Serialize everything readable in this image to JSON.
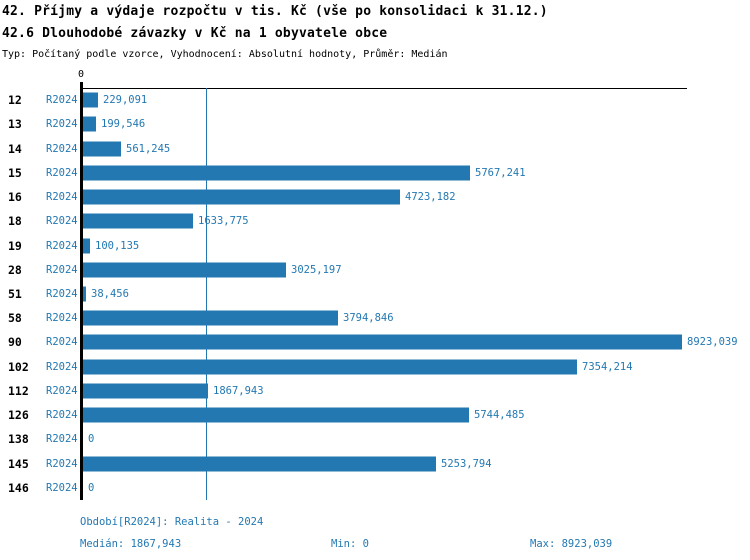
{
  "header": {
    "title_line1": "42. Příjmy a výdaje rozpočtu v tis. Kč (vše po konsolidaci k 31.12.)",
    "title_line2": "42.6 Dlouhodobé závazky v Kč na 1 obyvatele obce",
    "subtitle": "Typ: Počítaný podle vzorce, Vyhodnocení: Absolutní hodnoty, Průměr: Medián"
  },
  "chart_data": {
    "type": "bar",
    "orientation": "horizontal",
    "series_label": "R2024",
    "title": "42.6 Dlouhodobé závazky v Kč na 1 obyvatele obce",
    "xlabel": "",
    "ylabel": "",
    "xlim": [
      0,
      8923.039
    ],
    "grid": "median-line-only",
    "axis": {
      "zero_tick_label": "0",
      "x_max": 8923.039
    },
    "median_value": 1867.943,
    "min_value": 0,
    "max_value": 8923.039,
    "colors": {
      "bar": "#2378b2",
      "median_line": "#2378b2",
      "axis": "#000000",
      "value_text": "#2378b2"
    },
    "categories": [
      "12",
      "13",
      "14",
      "15",
      "16",
      "18",
      "19",
      "28",
      "51",
      "58",
      "90",
      "102",
      "112",
      "126",
      "138",
      "145",
      "146"
    ],
    "rows": [
      {
        "category": "12",
        "series": "R2024",
        "value": 229.091,
        "display": "229,091"
      },
      {
        "category": "13",
        "series": "R2024",
        "value": 199.546,
        "display": "199,546"
      },
      {
        "category": "14",
        "series": "R2024",
        "value": 561.245,
        "display": "561,245"
      },
      {
        "category": "15",
        "series": "R2024",
        "value": 5767.241,
        "display": "5767,241"
      },
      {
        "category": "16",
        "series": "R2024",
        "value": 4723.182,
        "display": "4723,182"
      },
      {
        "category": "18",
        "series": "R2024",
        "value": 1633.775,
        "display": "1633,775"
      },
      {
        "category": "19",
        "series": "R2024",
        "value": 100.135,
        "display": "100,135"
      },
      {
        "category": "28",
        "series": "R2024",
        "value": 3025.197,
        "display": "3025,197"
      },
      {
        "category": "51",
        "series": "R2024",
        "value": 38.456,
        "display": "38,456"
      },
      {
        "category": "58",
        "series": "R2024",
        "value": 3794.846,
        "display": "3794,846"
      },
      {
        "category": "90",
        "series": "R2024",
        "value": 8923.039,
        "display": "8923,039"
      },
      {
        "category": "102",
        "series": "R2024",
        "value": 7354.214,
        "display": "7354,214"
      },
      {
        "category": "112",
        "series": "R2024",
        "value": 1867.943,
        "display": "1867,943"
      },
      {
        "category": "126",
        "series": "R2024",
        "value": 5744.485,
        "display": "5744,485"
      },
      {
        "category": "138",
        "series": "R2024",
        "value": 0,
        "display": "0"
      },
      {
        "category": "145",
        "series": "R2024",
        "value": 5253.794,
        "display": "5253,794"
      },
      {
        "category": "146",
        "series": "R2024",
        "value": 0,
        "display": "0"
      }
    ]
  },
  "footer": {
    "period_label": "Období[R2024]: Realita - 2024",
    "median_label": "Medián: 1867,943",
    "min_label": "Min: 0",
    "max_label": "Max: 8923,039"
  }
}
